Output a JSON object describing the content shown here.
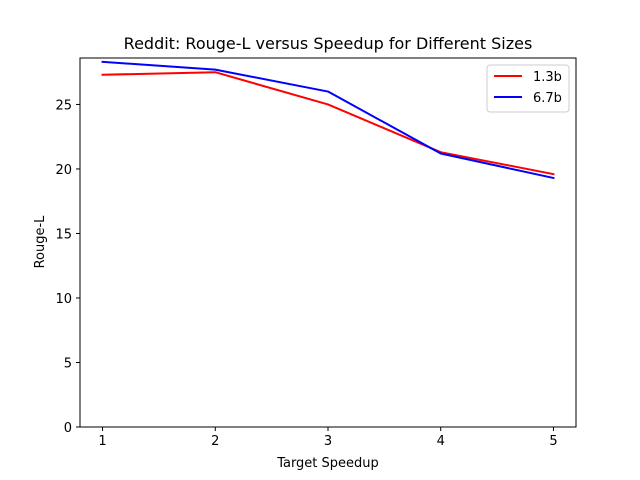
{
  "chart_data": {
    "type": "line",
    "title": "Reddit: Rouge-L versus Speedup for Different Sizes",
    "xlabel": "Target Speedup",
    "ylabel": "Rouge-L",
    "x": [
      1,
      2,
      3,
      4,
      5
    ],
    "xticks": [
      "1",
      "2",
      "3",
      "4",
      "5"
    ],
    "yticks": [
      "0",
      "5",
      "10",
      "15",
      "20",
      "25"
    ],
    "xlim": [
      0.8,
      5.2
    ],
    "ylim": [
      0,
      28.6
    ],
    "grid": false,
    "legend_position": "top-right",
    "series": [
      {
        "name": "1.3b",
        "color": "#ff0000",
        "values": [
          27.3,
          27.5,
          25.0,
          21.3,
          19.6
        ]
      },
      {
        "name": "6.7b",
        "color": "#0000ff",
        "values": [
          28.3,
          27.7,
          26.0,
          21.2,
          19.3
        ]
      }
    ]
  }
}
